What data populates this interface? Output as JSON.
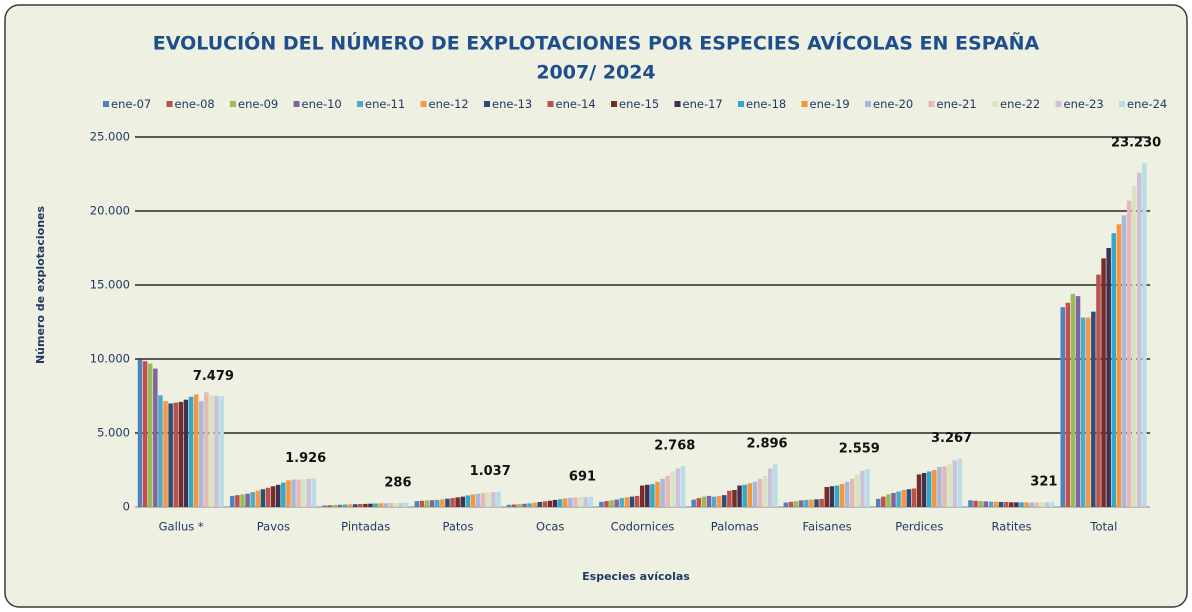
{
  "chart_data": {
    "type": "bar",
    "title": "EVOLUCIÓN DEL NÚMERO DE EXPLOTACIONES POR ESPECIES AVÍCOLAS EN ESPAÑA",
    "subtitle": "2007/ 2024",
    "y_label": "Número de explotaciones",
    "x_label": "Especies avícolas",
    "categories": [
      "Gallus *",
      "Pavos",
      "Pintadas",
      "Patos",
      "Ocas",
      "Codornices",
      "Palomas",
      "Faisanes",
      "Perdices",
      "Ratites",
      "Total"
    ],
    "ylim": [
      0,
      25000
    ],
    "yticks": [
      0,
      {
        "value": 5000,
        "label": "5.000"
      },
      {
        "value": 10000,
        "label": "10.000"
      },
      {
        "value": 15000,
        "label": "15.000"
      },
      {
        "value": 20000,
        "label": "20.000"
      },
      {
        "value": 25000,
        "label": "25.000"
      }
    ],
    "grid": true,
    "legend": "top",
    "series": [
      {
        "name": "ene-07",
        "color": "#4f81bd",
        "values": [
          9950,
          750,
          100,
          400,
          150,
          350,
          500,
          300,
          550,
          450,
          13500
        ]
      },
      {
        "name": "ene-08",
        "color": "#c0504d",
        "values": [
          9850,
          800,
          120,
          420,
          170,
          400,
          600,
          350,
          700,
          420,
          13800
        ]
      },
      {
        "name": "ene-09",
        "color": "#9bbb59",
        "values": [
          9700,
          850,
          140,
          440,
          190,
          450,
          700,
          400,
          850,
          400,
          14400
        ]
      },
      {
        "name": "ene-10",
        "color": "#8064a2",
        "values": [
          9350,
          900,
          150,
          460,
          220,
          500,
          750,
          450,
          950,
          380,
          14250
        ]
      },
      {
        "name": "ene-11",
        "color": "#4bacc6",
        "values": [
          7550,
          1000,
          170,
          480,
          250,
          600,
          700,
          480,
          1050,
          360,
          12800
        ]
      },
      {
        "name": "ene-12",
        "color": "#f79646",
        "values": [
          7150,
          1100,
          180,
          520,
          300,
          650,
          750,
          500,
          1150,
          350,
          12800
        ]
      },
      {
        "name": "ene-13",
        "color": "#2c4d75",
        "values": [
          7000,
          1200,
          190,
          560,
          340,
          700,
          800,
          520,
          1200,
          340,
          13200
        ]
      },
      {
        "name": "ene-14",
        "color": "#b9524f",
        "values": [
          7050,
          1300,
          200,
          600,
          380,
          750,
          1100,
          550,
          1250,
          330,
          15700
        ]
      },
      {
        "name": "ene-15",
        "color": "#772c2a",
        "values": [
          7100,
          1400,
          210,
          650,
          420,
          1450,
          1150,
          1350,
          2200,
          320,
          16800
        ]
      },
      {
        "name": "ene-17",
        "color": "#3f3151",
        "values": [
          7250,
          1500,
          220,
          700,
          480,
          1500,
          1450,
          1400,
          2300,
          315,
          17500
        ]
      },
      {
        "name": "ene-18",
        "color": "#31a9c9",
        "values": [
          7450,
          1650,
          240,
          780,
          530,
          1550,
          1500,
          1450,
          2400,
          310,
          18500
        ]
      },
      {
        "name": "ene-19",
        "color": "#f7953e",
        "values": [
          7600,
          1800,
          250,
          850,
          580,
          1700,
          1600,
          1550,
          2500,
          305,
          19100
        ]
      },
      {
        "name": "ene-20",
        "color": "#a6b8db",
        "values": [
          7150,
          1850,
          260,
          900,
          620,
          1900,
          1700,
          1700,
          2700,
          300,
          19700
        ]
      },
      {
        "name": "ene-21",
        "color": "#e6b9b8",
        "values": [
          7750,
          1850,
          270,
          950,
          650,
          2100,
          1900,
          1900,
          2750,
          310,
          20700
        ]
      },
      {
        "name": "ene-22",
        "color": "#d7e4bd",
        "values": [
          7550,
          1880,
          275,
          980,
          670,
          2400,
          2100,
          2200,
          2900,
          315,
          21700
        ]
      },
      {
        "name": "ene-23",
        "color": "#ccc1da",
        "values": [
          7500,
          1900,
          280,
          1000,
          680,
          2600,
          2600,
          2450,
          3150,
          318,
          22600
        ]
      },
      {
        "name": "ene-24",
        "color": "#b7dee8",
        "values": [
          7479,
          1926,
          286,
          1037,
          691,
          2768,
          2896,
          2559,
          3267,
          321,
          23230
        ],
        "value_labels": [
          "7.479",
          "1.926",
          "286",
          "1.037",
          "691",
          "2.768",
          "2.896",
          "2.559",
          "3.267",
          "321",
          "23.230"
        ]
      }
    ]
  }
}
